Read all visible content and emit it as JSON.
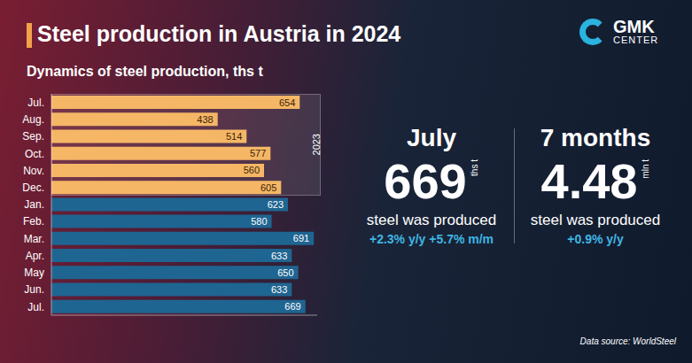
{
  "title": "Steel production in Austria in 2024",
  "subtitle": "Dynamics of steel production, ths t",
  "logo": "GMK CENTER",
  "source": "Data source: WorldSteel",
  "highlights": [
    {
      "heading": "July",
      "value": 669,
      "unit": "ths t",
      "text": "steel was produced",
      "changes": [
        "+2.3% y/y",
        "+5.7% m/m"
      ]
    },
    {
      "heading": "7 months",
      "value": 4.48,
      "unit": "mln t",
      "text": "steel was produced",
      "changes": [
        "+0.9% y/y"
      ]
    }
  ],
  "chart_data": {
    "type": "bar",
    "orientation": "horizontal",
    "categories": [
      "Jul.",
      "Aug.",
      "Sep.",
      "Oct.",
      "Nov.",
      "Dec.",
      "Jan.",
      "Feb.",
      "Mar.",
      "Apr.",
      "May",
      "Jun.",
      "Jul."
    ],
    "values": [
      654,
      438,
      514,
      577,
      560,
      605,
      623,
      580,
      691,
      633,
      650,
      633,
      669
    ],
    "colors": [
      "#f5b766",
      "#f5b766",
      "#f5b766",
      "#f5b766",
      "#f5b766",
      "#f5b766",
      "#1f6591",
      "#1f6591",
      "#1f6591",
      "#1f6591",
      "#1f6591",
      "#1f6591",
      "#1f6591"
    ],
    "xlim": [
      0,
      700
    ],
    "tick_labels": "y",
    "data_labels": true,
    "annotations": [
      {
        "text": "2023",
        "from": 0,
        "to": 5
      }
    ]
  }
}
